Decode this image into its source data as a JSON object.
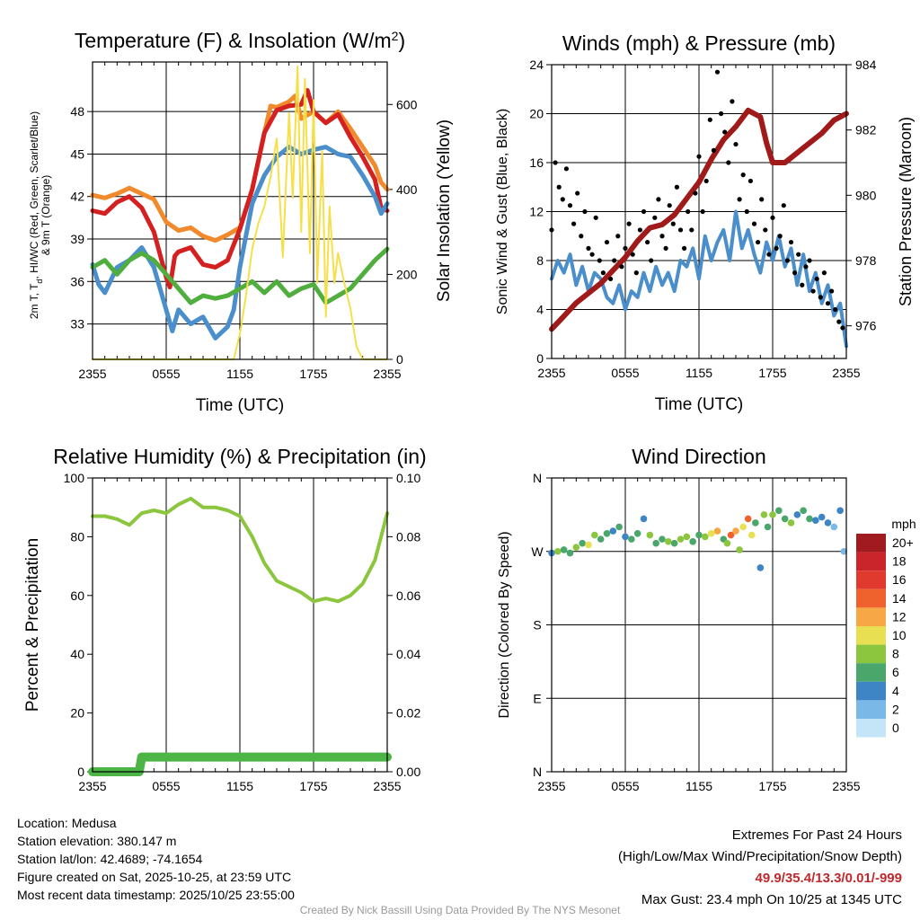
{
  "colors": {
    "red": "#d42020",
    "orange": "#f08a2c",
    "green": "#4fae3d",
    "blue": "#4a8fcb",
    "yellow": "#f5e04a",
    "black": "#000000",
    "maroon": "#a01a1a",
    "rh": "#8cc63f",
    "precip": "#4cb545"
  },
  "time_ticks": [
    "2355",
    "0555",
    "1155",
    "1755",
    "2355"
  ],
  "chart_data": [
    {
      "id": "temperature",
      "type": "line",
      "title": "Temperature (F) & Insolation (W/m",
      "title_sup": "2",
      "title_end": ")",
      "xlabel": "Time (UTC)",
      "ylabel_lines": [
        "2m T, T",
        "d",
        ", HI/WC (Red, Green, Scarlet/Blue)",
        "& 9m T (Orange)"
      ],
      "ylabel_right": "Solar Insolation (Yellow)",
      "ylim": [
        30.5,
        51.5
      ],
      "yticks": [
        33,
        36,
        39,
        42,
        45,
        48
      ],
      "ylim_right": [
        0,
        700
      ],
      "yticks_right": [
        0,
        200,
        400,
        600
      ],
      "x_hours": [
        0,
        24
      ],
      "series": [
        {
          "name": "9m T",
          "color": "orange",
          "x": [
            0,
            1,
            2,
            3,
            4,
            5,
            6,
            7,
            8,
            9,
            10,
            11,
            12,
            13,
            14,
            14.5,
            15,
            16,
            16.5,
            17,
            18,
            19,
            20,
            21,
            22,
            23,
            23.5,
            24
          ],
          "y": [
            42.1,
            41.9,
            42.2,
            42.6,
            42.2,
            41.8,
            40.2,
            39.6,
            39.8,
            39.2,
            38.9,
            39.3,
            39.8,
            42.5,
            46.5,
            48.4,
            48.3,
            48.7,
            49.1,
            47.5,
            48.0,
            47.2,
            48.0,
            46.8,
            45.5,
            44.2,
            43.0,
            42.5
          ]
        },
        {
          "name": "2m T",
          "color": "red",
          "x": [
            0,
            1,
            2,
            3,
            4,
            5,
            6,
            6.3,
            6.7,
            7,
            8,
            9,
            10,
            11,
            12,
            13,
            14,
            15,
            16,
            17,
            17.5,
            18,
            19,
            20,
            21,
            22,
            23,
            23.5,
            24
          ],
          "y": [
            41.0,
            40.8,
            41.6,
            42.0,
            41.2,
            39.5,
            36.3,
            35.6,
            37.8,
            38.1,
            38.4,
            37.2,
            37.0,
            37.5,
            39.7,
            42.5,
            46.5,
            48.1,
            48.4,
            48.5,
            49.5,
            48.0,
            47.2,
            47.8,
            46.2,
            44.8,
            43.2,
            41.2,
            41.0
          ]
        },
        {
          "name": "HI/WC",
          "color": "blue",
          "x": [
            0,
            0.5,
            1,
            2,
            3,
            4,
            5,
            6,
            6.5,
            7,
            8,
            9,
            10,
            11,
            11.5,
            12,
            13,
            14,
            15,
            16,
            17,
            18,
            19,
            20,
            21,
            22,
            23,
            23.5,
            24
          ],
          "y": [
            37.2,
            35.8,
            35.2,
            37.0,
            37.5,
            38.4,
            37.0,
            34.0,
            32.5,
            34.0,
            33.0,
            33.5,
            32.0,
            32.8,
            34.0,
            37.0,
            41.5,
            43.5,
            44.8,
            45.5,
            45.0,
            45.3,
            45.5,
            45.0,
            44.8,
            43.5,
            42.0,
            40.8,
            41.5
          ]
        },
        {
          "name": "Td",
          "color": "green",
          "x": [
            0,
            1,
            2,
            3,
            4,
            5,
            6,
            7,
            8,
            9,
            10,
            11,
            12,
            13,
            14,
            15,
            16,
            17,
            18,
            19,
            20,
            21,
            22,
            23,
            24
          ],
          "y": [
            37.0,
            37.5,
            36.5,
            37.5,
            38.0,
            37.5,
            36.5,
            35.5,
            34.5,
            35.0,
            34.8,
            35.0,
            35.5,
            36.0,
            35.2,
            36.0,
            35.0,
            35.5,
            35.8,
            34.5,
            35.0,
            35.5,
            36.5,
            37.5,
            38.3
          ]
        },
        {
          "name": "Solar Insolation",
          "color": "yellow",
          "axis": "right",
          "x": [
            0,
            11.5,
            12,
            12.5,
            13,
            13.5,
            14,
            14.5,
            15,
            15.5,
            16,
            16.3,
            16.7,
            17,
            17.3,
            17.7,
            18,
            18.3,
            18.7,
            19,
            19.3,
            19.7,
            20,
            20.5,
            21,
            21.5,
            22,
            24
          ],
          "y": [
            0,
            0,
            60,
            150,
            260,
            320,
            360,
            430,
            520,
            240,
            580,
            380,
            690,
            300,
            660,
            250,
            610,
            180,
            490,
            100,
            360,
            180,
            250,
            180,
            120,
            30,
            0,
            0
          ]
        }
      ]
    },
    {
      "id": "winds",
      "type": "line",
      "title": "Winds (mph) & Pressure (mb)",
      "xlabel": "Time (UTC)",
      "ylabel": "Sonic Wind & Gust (Blue, Black)",
      "ylabel_right": "Station Pressure (Maroon)",
      "ylim": [
        0,
        24
      ],
      "yticks": [
        0,
        4,
        8,
        12,
        16,
        20,
        24
      ],
      "ylim_right": [
        975.0,
        984.0
      ],
      "yticks_right": [
        976,
        978,
        980,
        982,
        984
      ],
      "x_hours": [
        0,
        24
      ],
      "series": [
        {
          "name": "Sonic Wind",
          "color": "blue",
          "x": [
            0,
            0.5,
            1,
            1.5,
            2,
            2.5,
            3,
            3.5,
            4,
            4.5,
            5,
            5.5,
            6,
            6.5,
            7,
            7.5,
            8,
            8.5,
            9,
            9.5,
            10,
            10.5,
            11,
            11.5,
            12,
            12.5,
            13,
            13.5,
            14,
            14.5,
            15,
            15.5,
            16,
            16.5,
            17,
            17.5,
            18,
            18.5,
            19,
            19.5,
            20,
            20.5,
            21,
            21.5,
            22,
            22.5,
            23,
            23.5,
            24
          ],
          "y": [
            6.5,
            8.0,
            7.0,
            8.5,
            6.0,
            7.5,
            5.5,
            7.0,
            6.5,
            5.0,
            4.5,
            6.0,
            4.0,
            5.5,
            5.0,
            7.0,
            5.5,
            7.5,
            6.0,
            7.0,
            5.5,
            8.0,
            7.5,
            9.0,
            6.5,
            10.0,
            8.0,
            9.5,
            10.5,
            8.0,
            12.0,
            9.0,
            10.5,
            8.5,
            7.0,
            9.5,
            8.0,
            10.0,
            7.5,
            9.0,
            6.0,
            8.5,
            5.5,
            7.0,
            4.5,
            6.0,
            3.5,
            4.5,
            1.0
          ]
        },
        {
          "name": "Pressure",
          "color": "maroon",
          "axis": "right",
          "x": [
            0,
            1,
            2,
            3,
            4,
            5,
            6,
            7,
            8,
            9,
            10,
            11,
            12,
            13,
            14,
            15,
            16,
            17,
            17.5,
            18,
            19,
            20,
            21,
            22,
            23,
            24
          ],
          "y": [
            975.9,
            976.3,
            976.7,
            977.0,
            977.3,
            977.7,
            978.1,
            978.6,
            979.0,
            979.1,
            979.4,
            979.9,
            980.4,
            981.1,
            981.7,
            982.1,
            982.6,
            982.4,
            981.6,
            981.0,
            981.0,
            981.3,
            981.6,
            981.9,
            982.3,
            982.5
          ]
        }
      ],
      "gust_dots": {
        "name": "Gust",
        "color": "black",
        "x": [
          0,
          0.3,
          0.6,
          0.9,
          1.2,
          1.5,
          1.8,
          2.1,
          2.4,
          2.7,
          3.0,
          3.3,
          3.6,
          3.9,
          4.2,
          4.5,
          4.8,
          5.1,
          5.4,
          5.7,
          6.0,
          6.3,
          6.6,
          6.9,
          7.2,
          7.5,
          7.8,
          8.1,
          8.4,
          8.7,
          9.0,
          9.3,
          9.6,
          9.9,
          10.2,
          10.5,
          10.8,
          11.1,
          11.4,
          11.7,
          12.0,
          12.3,
          12.6,
          12.9,
          13.2,
          13.5,
          13.8,
          14.1,
          14.4,
          14.7,
          15.0,
          15.3,
          15.6,
          15.9,
          16.2,
          16.5,
          16.8,
          17.1,
          17.4,
          17.7,
          18.0,
          18.3,
          18.6,
          18.9,
          19.2,
          19.5,
          19.8,
          20.1,
          20.4,
          20.7,
          21.0,
          21.3,
          21.6,
          21.9,
          22.2,
          22.5,
          22.8,
          23.1,
          23.4,
          23.7
        ],
        "y": [
          10.5,
          16.0,
          14.0,
          13.0,
          15.5,
          12.5,
          11.0,
          13.5,
          10.0,
          12.0,
          9.0,
          8.5,
          11.5,
          8.0,
          7.0,
          9.5,
          6.5,
          8.0,
          10.0,
          7.5,
          9.0,
          11.0,
          8.5,
          7.0,
          10.5,
          12.0,
          9.5,
          8.0,
          11.5,
          13.0,
          10.0,
          9.0,
          12.5,
          11.0,
          14.0,
          10.5,
          9.0,
          12.0,
          10.5,
          13.5,
          16.5,
          12.0,
          14.5,
          19.5,
          17.0,
          23.4,
          20.0,
          18.5,
          16.0,
          21.0,
          17.5,
          13.0,
          15.0,
          12.0,
          14.5,
          11.0,
          9.5,
          13.0,
          10.5,
          8.5,
          11.5,
          9.0,
          10.0,
          12.5,
          8.0,
          9.5,
          7.0,
          8.5,
          6.0,
          7.5,
          8.0,
          5.5,
          6.5,
          5.0,
          7.0,
          4.5,
          5.5,
          4.0,
          3.0,
          2.5
        ]
      }
    },
    {
      "id": "humidity",
      "type": "line",
      "title": "Relative Humidity (%) & Precipitation (in)",
      "ylabel": "Percent & Precipitation",
      "ylim": [
        0,
        100
      ],
      "yticks": [
        0,
        20,
        40,
        60,
        80,
        100
      ],
      "ylim_right": [
        0,
        0.1
      ],
      "yticks_right": [
        "0.00",
        "0.02",
        "0.04",
        "0.06",
        "0.08",
        "0.10"
      ],
      "x_hours": [
        0,
        24
      ],
      "series": [
        {
          "name": "Relative Humidity",
          "color": "rh",
          "x": [
            0,
            1,
            2,
            3,
            4,
            5,
            6,
            7,
            8,
            9,
            10,
            11,
            12,
            13,
            14,
            15,
            16,
            17,
            18,
            19,
            20,
            21,
            22,
            23,
            24
          ],
          "y": [
            87,
            87,
            86,
            84,
            88,
            89,
            88,
            91,
            93,
            90,
            90,
            89,
            87,
            80,
            71,
            65,
            63,
            61,
            58,
            59,
            58,
            60,
            64,
            72,
            88
          ]
        },
        {
          "name": "Precipitation",
          "color": "precip",
          "axis": "right",
          "x": [
            0,
            3.8,
            4.0,
            24
          ],
          "y": [
            0.0,
            0.0,
            0.005,
            0.005
          ]
        }
      ]
    },
    {
      "id": "wind-direction",
      "type": "scatter",
      "title": "Wind Direction",
      "ylabel": "Direction (Colored By Speed)",
      "ylim": [
        0,
        360
      ],
      "ytick_labels": [
        "N",
        "E",
        "S",
        "W",
        "N"
      ],
      "x_hours": [
        0,
        24
      ],
      "legend_title": "mph",
      "legend_labels": [
        "20+",
        "18",
        "16",
        "14",
        "12",
        "10",
        "8",
        "6",
        "4",
        "2",
        "0"
      ],
      "legend_colors": [
        "#a11a1f",
        "#c9252b",
        "#e03a2f",
        "#f0622d",
        "#f8a746",
        "#e8e052",
        "#8cc63f",
        "#4aa66a",
        "#3d85c4",
        "#7ab8e8",
        "#c4e5f8"
      ],
      "points": {
        "x": [
          0,
          0.5,
          1.0,
          1.5,
          2.0,
          2.5,
          3.0,
          3.5,
          4.0,
          4.5,
          5.0,
          5.5,
          6.0,
          6.5,
          7.0,
          7.5,
          8.0,
          8.5,
          9.0,
          9.5,
          10.0,
          10.5,
          11.0,
          11.5,
          12.0,
          12.5,
          13.0,
          13.5,
          14.0,
          14.3,
          14.6,
          15.0,
          15.3,
          15.6,
          16.0,
          16.3,
          16.6,
          17.0,
          17.3,
          17.6,
          18.0,
          18.5,
          19.0,
          19.5,
          20.0,
          20.5,
          21.0,
          21.5,
          22.0,
          22.5,
          23.0,
          23.5,
          23.8
        ],
        "y": [
          268,
          270,
          272,
          268,
          275,
          280,
          278,
          290,
          285,
          292,
          295,
          300,
          288,
          285,
          292,
          310,
          290,
          280,
          285,
          282,
          280,
          285,
          288,
          282,
          290,
          288,
          292,
          295,
          285,
          280,
          290,
          295,
          272,
          300,
          310,
          290,
          305,
          250,
          315,
          300,
          315,
          320,
          310,
          305,
          315,
          320,
          310,
          308,
          312,
          305,
          300,
          320,
          270
        ],
        "speed": [
          3,
          7,
          5,
          6,
          8,
          6,
          9,
          8,
          5,
          6,
          4,
          5,
          4,
          6,
          5,
          4,
          7,
          6,
          6,
          7,
          6,
          7,
          8,
          5,
          6,
          7,
          10,
          12,
          6,
          8,
          13,
          12,
          7,
          10,
          14,
          9,
          6,
          3,
          8,
          5,
          7,
          6,
          5,
          7,
          4,
          5,
          6,
          4,
          3,
          4,
          2,
          3,
          1
        ]
      }
    }
  ],
  "info": {
    "location": "Location: Medusa",
    "elevation": "Station elevation: 380.147 m",
    "latlon": "Station lat/lon: 42.4689; -74.1654",
    "created": "Figure created on Sat, 2025-10-25, at 23:59 UTC",
    "recent": "Most recent data timestamp: 2025/10/25 23:55:00"
  },
  "extremes": {
    "title": "Extremes For Past 24 Hours",
    "subtitle": "(High/Low/Max Wind/Precipitation/Snow Depth)",
    "values": "49.9/35.4/13.3/0.01/-999",
    "max_gust": "Max Gust: 23.4 mph On 10/25 at 1345 UTC"
  },
  "credit": "Created By Nick Bassill Using Data Provided By The NYS Mesonet"
}
